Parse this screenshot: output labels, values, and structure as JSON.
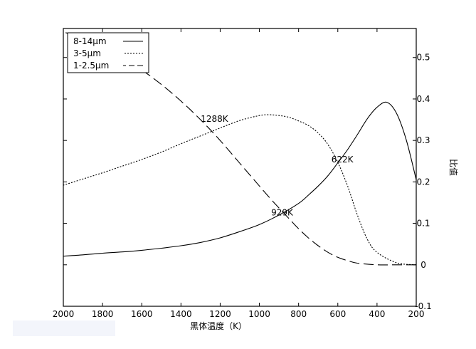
{
  "chart_data": {
    "type": "line",
    "mirrored_horizontally": true,
    "xlabel": "黑体温度（K）",
    "ylabel": "比值",
    "xlim": [
      200,
      2000
    ],
    "ylim": [
      -0.1,
      0.57
    ],
    "xticks": [
      200,
      400,
      600,
      800,
      1000,
      1200,
      1400,
      1600,
      1800,
      2000
    ],
    "yticks": [
      -0.1,
      0,
      0.1,
      0.2,
      0.3,
      0.4,
      0.5
    ],
    "ytick_labels": [
      "-0.1",
      "0",
      "0.1",
      "0.2",
      "0.3",
      "0.4",
      "0.5"
    ],
    "grid": false,
    "legend_position": "top-left",
    "series": [
      {
        "name": "8-14μm",
        "style": "solid",
        "x": [
          200,
          250,
          300,
          350,
          400,
          450,
          500,
          550,
          600,
          650,
          700,
          750,
          800,
          900,
          1000,
          1100,
          1200,
          1300,
          1400,
          1500,
          1600,
          1700,
          1800,
          1900,
          2000
        ],
        "y": [
          0.205,
          0.3,
          0.365,
          0.392,
          0.38,
          0.352,
          0.314,
          0.278,
          0.246,
          0.215,
          0.19,
          0.168,
          0.148,
          0.12,
          0.097,
          0.08,
          0.065,
          0.054,
          0.046,
          0.04,
          0.035,
          0.031,
          0.028,
          0.024,
          0.021
        ]
      },
      {
        "name": "3-5μm",
        "style": "dotted",
        "x": [
          200,
          300,
          400,
          450,
          500,
          550,
          600,
          650,
          700,
          750,
          800,
          850,
          900,
          950,
          1000,
          1100,
          1200,
          1300,
          1400,
          1500,
          1600,
          1700,
          1800,
          1900,
          2000
        ],
        "y": [
          0.0,
          0.005,
          0.03,
          0.062,
          0.12,
          0.19,
          0.247,
          0.29,
          0.318,
          0.336,
          0.347,
          0.356,
          0.36,
          0.362,
          0.36,
          0.348,
          0.33,
          0.311,
          0.292,
          0.272,
          0.254,
          0.238,
          0.222,
          0.207,
          0.192
        ]
      },
      {
        "name": "1-2.5μm",
        "style": "dashed",
        "x": [
          200,
          300,
          400,
          500,
          550,
          600,
          650,
          700,
          750,
          800,
          850,
          900,
          950,
          1000,
          1100,
          1200,
          1300,
          1400,
          1500,
          1600,
          1700,
          1800,
          1900,
          2000
        ],
        "y": [
          0.0,
          0.0,
          0.0,
          0.004,
          0.01,
          0.018,
          0.03,
          0.046,
          0.065,
          0.087,
          0.112,
          0.137,
          0.163,
          0.19,
          0.245,
          0.3,
          0.35,
          0.395,
          0.435,
          0.47,
          0.5,
          0.525,
          0.545,
          0.562
        ]
      }
    ],
    "annotations": [
      {
        "text": "622K",
        "x": 622,
        "y": 0.254,
        "anchor": "end"
      },
      {
        "text": "929K",
        "x": 929,
        "y": 0.126,
        "anchor": "end"
      },
      {
        "text": "1288K",
        "x": 1288,
        "y": 0.352,
        "anchor": "end"
      }
    ]
  }
}
